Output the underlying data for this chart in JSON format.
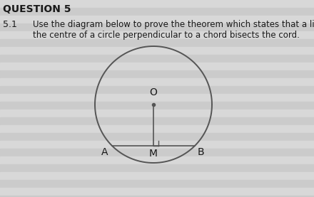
{
  "title": "QUESTION 5",
  "subtitle_number": "5.1",
  "subtitle_text": "Use the diagram below to prove the theorem which states that a line drawn from\nthe centre of a circle perpendicular to a chord bisects the cord.",
  "background_color": "#e0e0e0",
  "line_stripe_colors": [
    "#d4d4d4",
    "#cacaca"
  ],
  "circle_color": "#555555",
  "line_color": "#555555",
  "text_color": "#1a1a1a",
  "center_dot_label": "O",
  "chord_label_left": "A",
  "chord_label_mid": "M",
  "chord_label_right": "B",
  "fig_width": 4.4,
  "fig_height": 2.77,
  "dpi": 100
}
